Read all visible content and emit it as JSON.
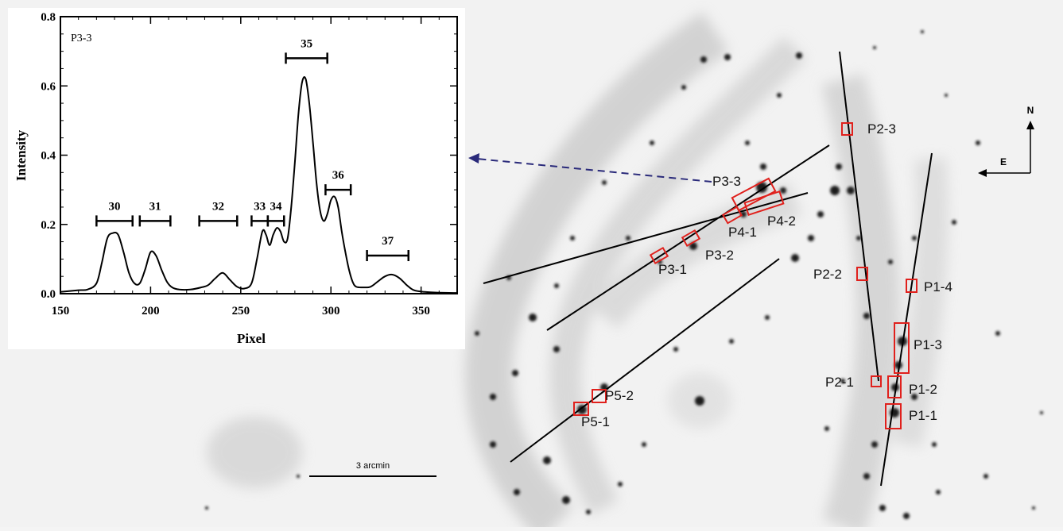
{
  "image": {
    "scale_bar_label": "3 arcmin",
    "compass": {
      "north": "N",
      "east": "E"
    },
    "slit_labels": [
      "P1-1",
      "P1-2",
      "P1-3",
      "P1-4",
      "P2-1",
      "P2-2",
      "P2-3",
      "P3-1",
      "P3-2",
      "P3-3",
      "P4-1",
      "P4-2",
      "P5-1",
      "P5-2"
    ]
  },
  "chart_data": {
    "type": "line",
    "panel_label": "P3-3",
    "xlabel": "Pixel",
    "ylabel": "Intensity",
    "xlim": [
      150,
      370
    ],
    "ylim": [
      0,
      0.8
    ],
    "xticks": [
      150,
      200,
      250,
      300,
      350
    ],
    "yticks": [
      0.0,
      0.2,
      0.4,
      0.6,
      0.8
    ],
    "series": [
      {
        "x": [
          150,
          160,
          165,
          170,
          173,
          176,
          179,
          182,
          185,
          188,
          191,
          194,
          197,
          200,
          203,
          206,
          209,
          212,
          216,
          222,
          228,
          232,
          236,
          240,
          244,
          248,
          252,
          256,
          259,
          262,
          264,
          266,
          268,
          270,
          272,
          274,
          276,
          278,
          280,
          282,
          284,
          286,
          288,
          290,
          292,
          294,
          296,
          298,
          300,
          302,
          304,
          306,
          308,
          310,
          312,
          314,
          318,
          322,
          326,
          330,
          334,
          338,
          342,
          346,
          352,
          360,
          370
        ],
        "y": [
          0.005,
          0.01,
          0.012,
          0.03,
          0.09,
          0.16,
          0.175,
          0.17,
          0.12,
          0.06,
          0.03,
          0.03,
          0.07,
          0.12,
          0.11,
          0.07,
          0.035,
          0.018,
          0.012,
          0.012,
          0.018,
          0.025,
          0.045,
          0.06,
          0.04,
          0.02,
          0.015,
          0.03,
          0.1,
          0.18,
          0.17,
          0.14,
          0.17,
          0.19,
          0.18,
          0.15,
          0.16,
          0.25,
          0.38,
          0.52,
          0.61,
          0.62,
          0.55,
          0.44,
          0.32,
          0.24,
          0.21,
          0.23,
          0.27,
          0.28,
          0.25,
          0.18,
          0.12,
          0.07,
          0.035,
          0.02,
          0.018,
          0.02,
          0.035,
          0.05,
          0.055,
          0.045,
          0.025,
          0.01,
          0.005,
          0.003,
          0.002
        ]
      }
    ],
    "annotations": [
      {
        "label": "30",
        "x_start": 170,
        "x_end": 190,
        "y": 0.21
      },
      {
        "label": "31",
        "x_start": 194,
        "x_end": 211,
        "y": 0.21
      },
      {
        "label": "32",
        "x_start": 227,
        "x_end": 248,
        "y": 0.21
      },
      {
        "label": "33",
        "x_start": 256,
        "x_end": 265,
        "y": 0.21
      },
      {
        "label": "34",
        "x_start": 265,
        "x_end": 274,
        "y": 0.21
      },
      {
        "label": "35",
        "x_start": 275,
        "x_end": 298,
        "y": 0.68
      },
      {
        "label": "36",
        "x_start": 297,
        "x_end": 311,
        "y": 0.3
      },
      {
        "label": "37",
        "x_start": 320,
        "x_end": 343,
        "y": 0.11
      }
    ]
  }
}
